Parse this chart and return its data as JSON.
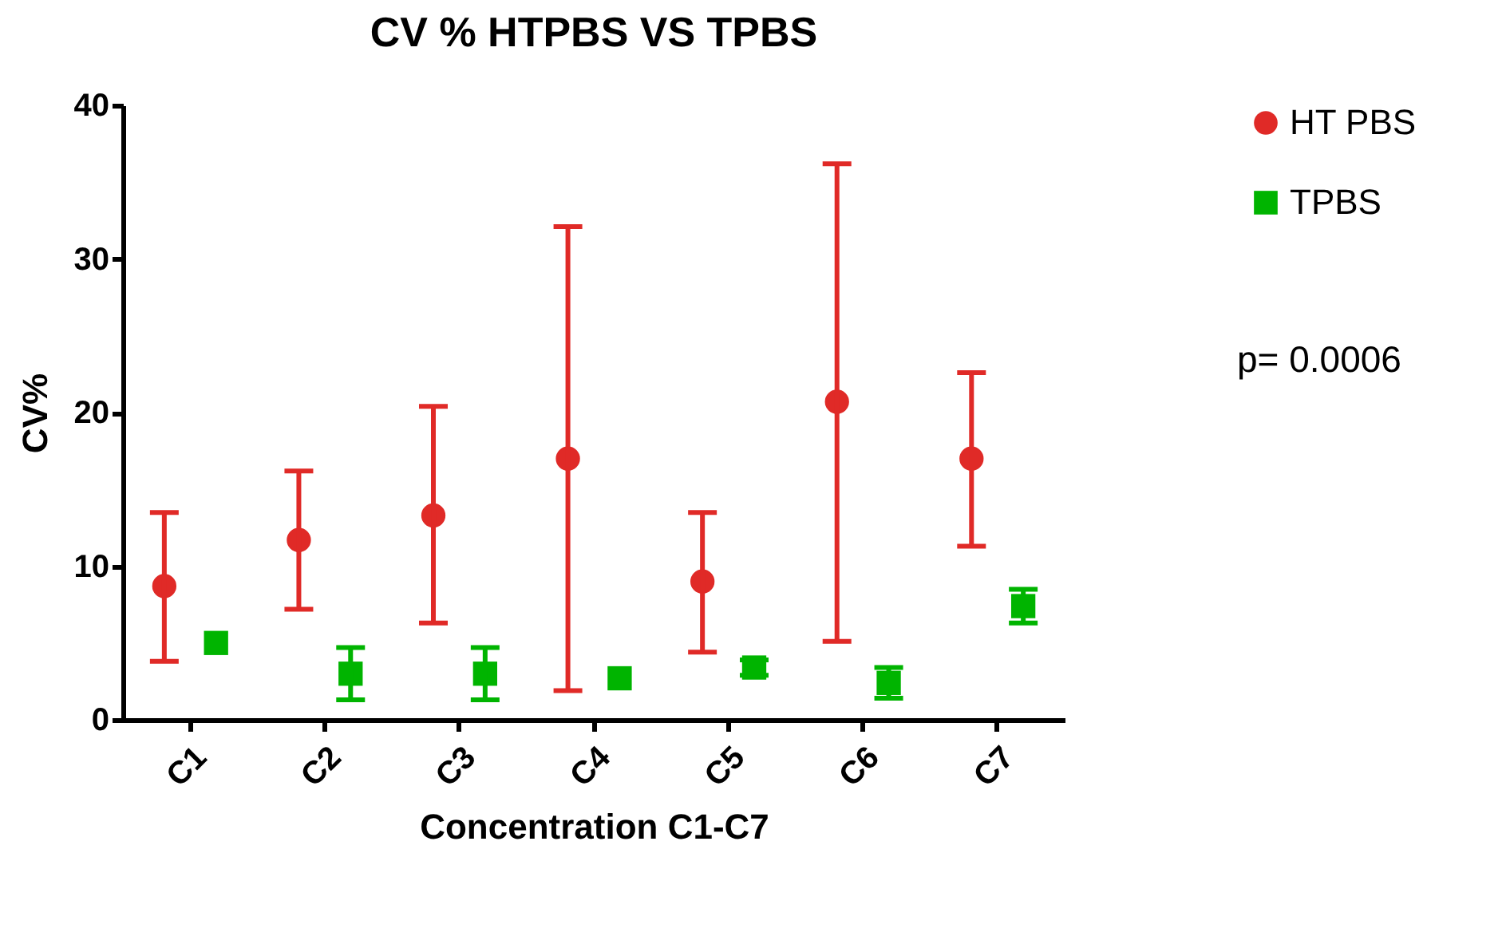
{
  "chart_data": {
    "type": "scatter",
    "title": "CV % HTPBS VS TPBS",
    "xlabel": "Concentration C1-C7",
    "ylabel": "CV%",
    "categories": [
      "C1",
      "C2",
      "C3",
      "C4",
      "C5",
      "C6",
      "C7"
    ],
    "series": [
      {
        "name": "HT PBS",
        "color": "#e02a27",
        "marker": "circle",
        "values": [
          8.7,
          11.7,
          13.3,
          17.0,
          9.0,
          20.7,
          17.0
        ],
        "errors": [
          [
            3.8,
            13.5
          ],
          [
            7.2,
            16.2
          ],
          [
            6.3,
            20.4
          ],
          [
            1.9,
            32.1
          ],
          [
            4.4,
            13.5
          ],
          [
            5.1,
            36.2
          ],
          [
            11.3,
            22.6
          ]
        ]
      },
      {
        "name": "TPBS",
        "color": "#00b400",
        "marker": "square",
        "values": [
          5.0,
          3.0,
          3.0,
          2.7,
          3.4,
          2.4,
          7.4
        ],
        "errors": [
          null,
          [
            1.3,
            4.7
          ],
          [
            1.3,
            4.7
          ],
          null,
          [
            2.9,
            3.9
          ],
          [
            1.4,
            3.4
          ],
          [
            6.3,
            8.5
          ]
        ]
      }
    ],
    "ylim": [
      0,
      40
    ],
    "yticks": [
      0,
      10,
      20,
      30,
      40
    ],
    "legend": "right",
    "annotations": [
      "p= 0.0006"
    ]
  }
}
